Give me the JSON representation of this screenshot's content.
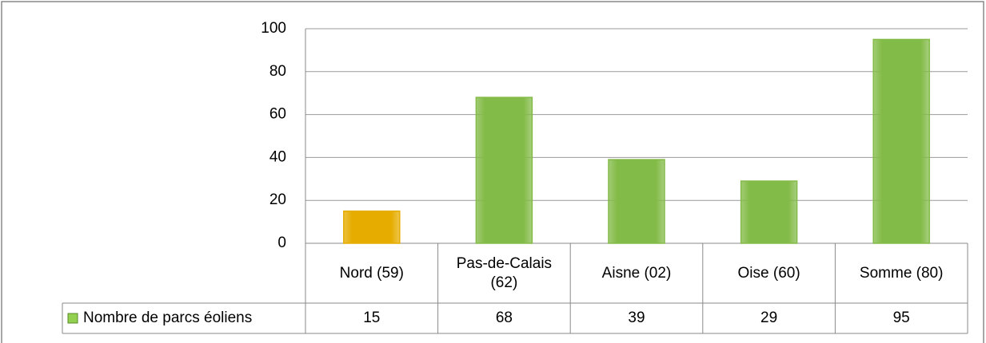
{
  "chart_data": {
    "type": "bar",
    "categories": [
      "Nord (59)",
      "Pas-de-Calais (62)",
      "Aisne (02)",
      "Oise (60)",
      "Somme (80)"
    ],
    "series": [
      {
        "name": "Nombre de parcs éoliens",
        "color": "#92d050",
        "point_colors": [
          "#ffc000",
          "#92d050",
          "#92d050",
          "#92d050",
          "#92d050"
        ],
        "values": [
          15,
          68,
          39,
          29,
          95
        ]
      }
    ],
    "ylim": [
      0,
      100
    ],
    "yticks": [
      0,
      20,
      40,
      60,
      80,
      100
    ],
    "grid": true,
    "data_table": true
  }
}
